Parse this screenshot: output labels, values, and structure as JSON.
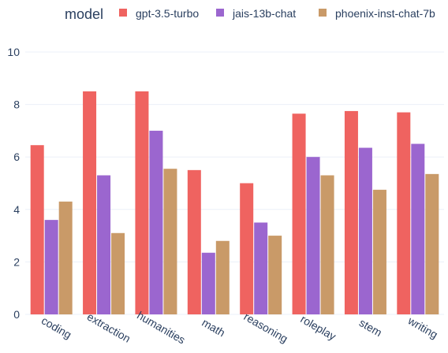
{
  "chart_data": {
    "type": "bar",
    "legend_title": "model",
    "legend_position": "top",
    "categories": [
      "coding",
      "extraction",
      "humanities",
      "math",
      "reasoning",
      "roleplay",
      "stem",
      "writing"
    ],
    "series": [
      {
        "name": "gpt-3.5-turbo",
        "color": "#ef6360",
        "values": [
          6.45,
          8.5,
          8.5,
          5.5,
          5.0,
          7.65,
          7.75,
          7.7
        ]
      },
      {
        "name": "jais-13b-chat",
        "color": "#9b66cf",
        "values": [
          3.6,
          5.3,
          7.0,
          2.35,
          3.5,
          6.0,
          6.35,
          6.5
        ]
      },
      {
        "name": "phoenix-inst-chat-7b",
        "color": "#c99a68",
        "values": [
          4.3,
          3.1,
          5.55,
          2.8,
          3.0,
          5.3,
          4.75,
          5.35
        ]
      }
    ],
    "ylim": [
      0,
      10.5
    ],
    "yticks": [
      0,
      2,
      4,
      6,
      8,
      10
    ],
    "grid": true
  }
}
